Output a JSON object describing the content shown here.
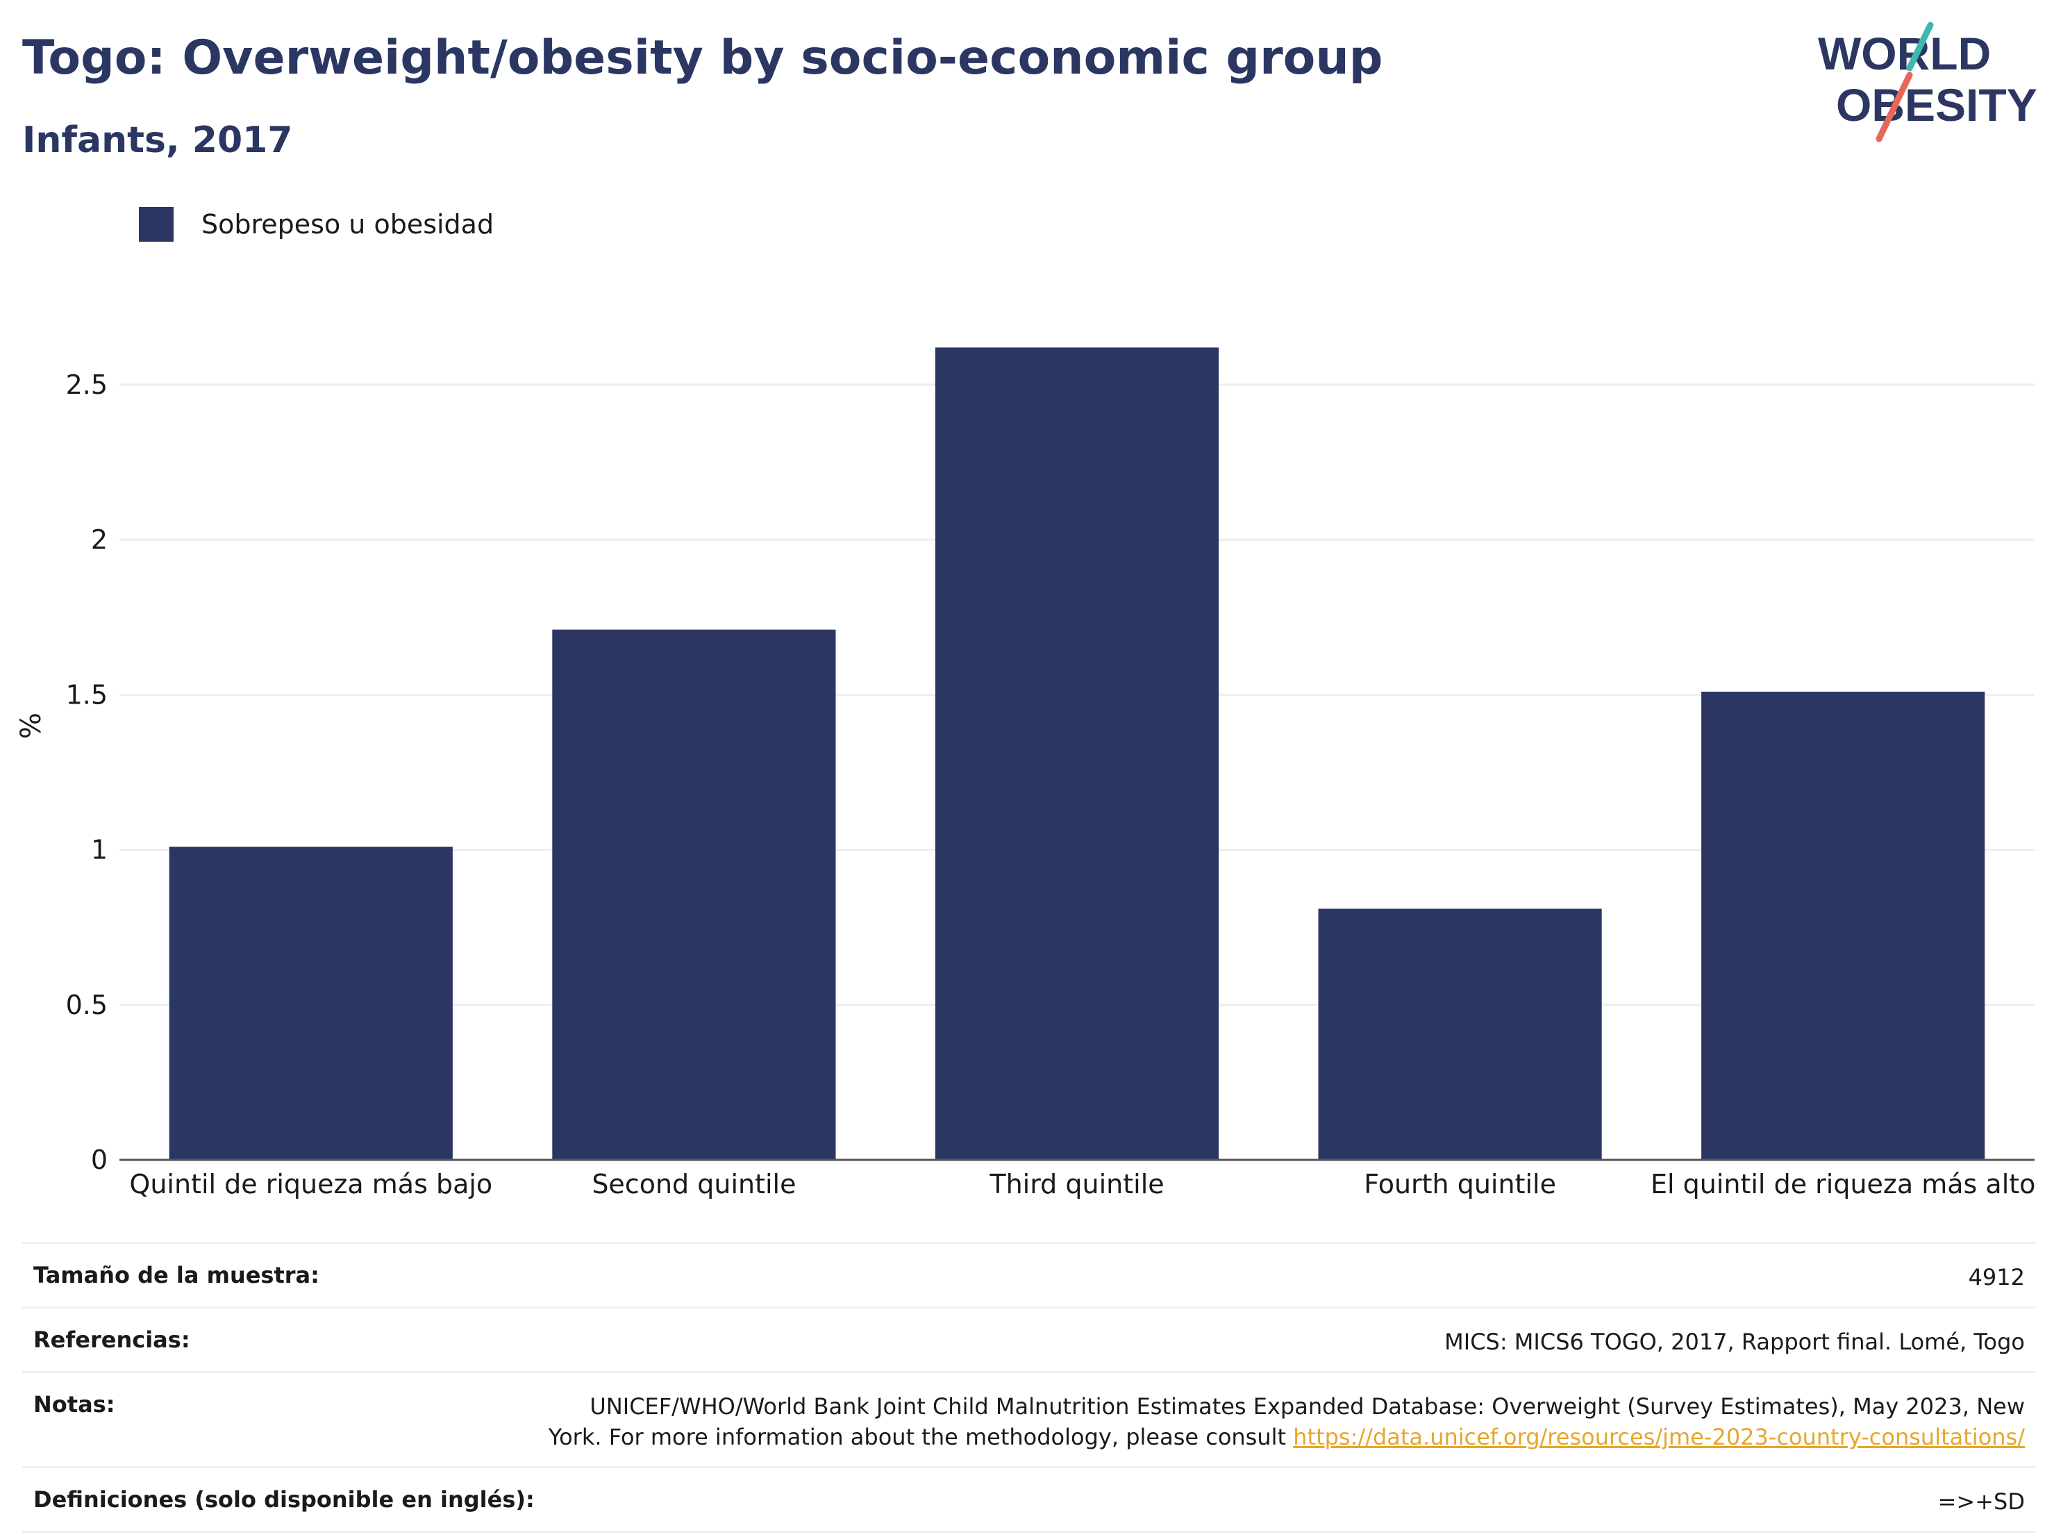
{
  "title": "Togo: Overweight/obesity by socio-economic group",
  "subtitle": "Infants, 2017",
  "logo": {
    "line1": "WORLD",
    "line2": "OBESITY",
    "accent_teal": "#3fb8af",
    "accent_red": "#e8665a"
  },
  "colors": {
    "bar": "#2b3762",
    "title": "#2b3762",
    "grid": "#eceef3",
    "axis": "#555555"
  },
  "chart_data": {
    "type": "bar",
    "title": "Togo: Overweight/obesity by socio-economic group",
    "subtitle": "Infants, 2017",
    "categories": [
      "Quintil de riqueza más bajo",
      "Second quintile",
      "Third quintile",
      "Fourth quintile",
      "El quintil de riqueza más alto"
    ],
    "series": [
      {
        "name": "Sobrepeso u obesidad",
        "values": [
          1.01,
          1.71,
          2.62,
          0.81,
          1.51
        ],
        "color": "#2b3762"
      }
    ],
    "xlabel": "",
    "ylabel": "%",
    "ylim": [
      0,
      2.8
    ],
    "yticks": [
      0,
      0.5,
      1,
      1.5,
      2,
      2.5
    ],
    "ytick_labels": [
      "0",
      "0.5",
      "1",
      "1.5",
      "2",
      "2.5"
    ],
    "grid": true,
    "legend_position": "top-left"
  },
  "footer": {
    "rows": [
      {
        "label": "Tamaño de la muestra:",
        "value": "4912"
      },
      {
        "label": "Referencias:",
        "value": "MICS: MICS6 TOGO, 2017, Rapport final. Lomé, Togo"
      },
      {
        "label": "Notas:",
        "value": "UNICEF/WHO/World Bank Joint Child Malnutrition Estimates Expanded Database: Overweight (Survey Estimates), May 2023, New York. For more information about the methodology, please consult ",
        "link": "https://data.unicef.org/resources/jme-2023-country-consultations/"
      },
      {
        "label": "Definiciones (solo disponible en inglés):",
        "value": "=>+SD"
      }
    ]
  }
}
